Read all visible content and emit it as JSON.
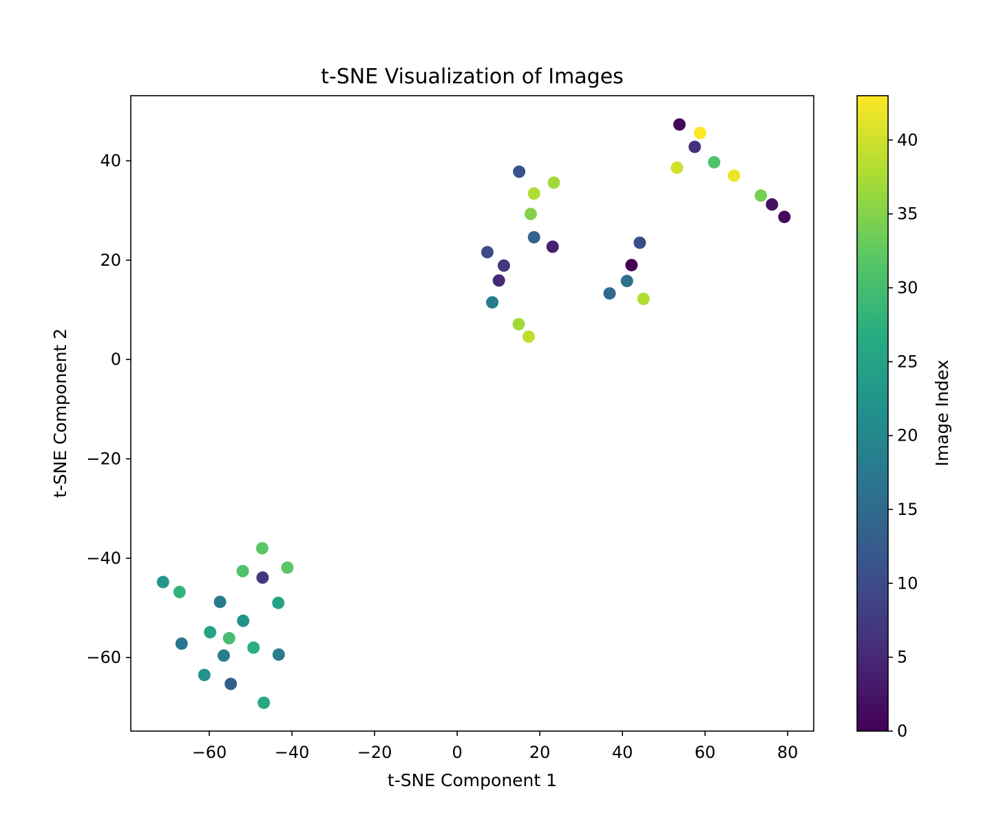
{
  "chart_data": {
    "type": "scatter",
    "title": "t-SNE Visualization of Images",
    "xlabel": "t-SNE Component 1",
    "ylabel": "t-SNE Component 2",
    "xlim": [
      -79,
      86.3
    ],
    "ylim": [
      -74.8,
      53.1
    ],
    "xticks": [
      -60,
      -40,
      -20,
      0,
      20,
      40,
      60,
      80
    ],
    "yticks": [
      -60,
      -40,
      -20,
      0,
      20,
      40
    ],
    "grid": false,
    "legend": "none",
    "colormap": "viridis",
    "colorbar": {
      "label": "Image Index",
      "range": [
        0,
        43
      ],
      "ticks": [
        0,
        5,
        10,
        15,
        20,
        25,
        30,
        35,
        40
      ]
    },
    "points": [
      {
        "x": 53.8,
        "y": 47.3,
        "c": 1
      },
      {
        "x": 58.8,
        "y": 45.6,
        "c": 43
      },
      {
        "x": 57.5,
        "y": 42.8,
        "c": 6
      },
      {
        "x": 62.2,
        "y": 39.7,
        "c": 31
      },
      {
        "x": 53.2,
        "y": 38.6,
        "c": 40
      },
      {
        "x": 67.0,
        "y": 37.0,
        "c": 42
      },
      {
        "x": 73.5,
        "y": 33.0,
        "c": 34
      },
      {
        "x": 76.2,
        "y": 31.2,
        "c": 2
      },
      {
        "x": 79.2,
        "y": 28.7,
        "c": 1
      },
      {
        "x": 15.0,
        "y": 37.8,
        "c": 11
      },
      {
        "x": 23.4,
        "y": 35.6,
        "c": 37
      },
      {
        "x": 18.6,
        "y": 33.4,
        "c": 38
      },
      {
        "x": 17.8,
        "y": 29.3,
        "c": 35
      },
      {
        "x": 18.6,
        "y": 24.6,
        "c": 14
      },
      {
        "x": 23.1,
        "y": 22.7,
        "c": 4
      },
      {
        "x": 7.3,
        "y": 21.6,
        "c": 10
      },
      {
        "x": 11.3,
        "y": 18.9,
        "c": 7
      },
      {
        "x": 10.1,
        "y": 15.9,
        "c": 5
      },
      {
        "x": 8.5,
        "y": 11.5,
        "c": 18
      },
      {
        "x": 14.9,
        "y": 7.1,
        "c": 37
      },
      {
        "x": 17.3,
        "y": 4.6,
        "c": 39
      },
      {
        "x": 44.2,
        "y": 23.5,
        "c": 10
      },
      {
        "x": 42.2,
        "y": 19.0,
        "c": 0
      },
      {
        "x": 41.1,
        "y": 15.8,
        "c": 16
      },
      {
        "x": 36.9,
        "y": 13.3,
        "c": 15
      },
      {
        "x": 45.1,
        "y": 12.2,
        "c": 38
      },
      {
        "x": -47.2,
        "y": -38.0,
        "c": 32
      },
      {
        "x": -41.1,
        "y": -41.9,
        "c": 32
      },
      {
        "x": -51.9,
        "y": -42.6,
        "c": 31
      },
      {
        "x": -47.1,
        "y": -43.9,
        "c": 7
      },
      {
        "x": -71.2,
        "y": -44.8,
        "c": 23
      },
      {
        "x": -67.2,
        "y": -46.8,
        "c": 28
      },
      {
        "x": -57.4,
        "y": -48.8,
        "c": 18
      },
      {
        "x": -43.3,
        "y": -49.0,
        "c": 25
      },
      {
        "x": -51.8,
        "y": -52.6,
        "c": 22
      },
      {
        "x": -59.8,
        "y": -54.9,
        "c": 25
      },
      {
        "x": -55.2,
        "y": -56.1,
        "c": 30
      },
      {
        "x": -49.3,
        "y": -58.0,
        "c": 27
      },
      {
        "x": -66.7,
        "y": -57.2,
        "c": 17
      },
      {
        "x": -56.5,
        "y": -59.6,
        "c": 18
      },
      {
        "x": -43.2,
        "y": -59.4,
        "c": 18
      },
      {
        "x": -61.2,
        "y": -63.5,
        "c": 22
      },
      {
        "x": -54.8,
        "y": -65.3,
        "c": 13
      },
      {
        "x": -46.8,
        "y": -69.1,
        "c": 26
      }
    ]
  }
}
